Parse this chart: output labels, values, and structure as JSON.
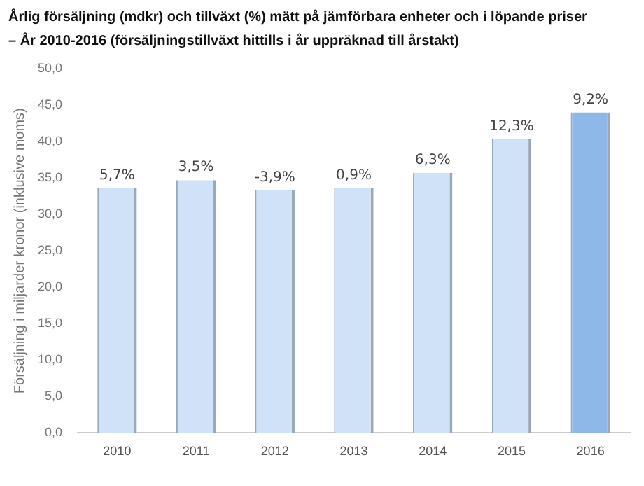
{
  "chart_data": {
    "type": "bar",
    "title": "Årlig försäljning (mdkr) och tillväxt (%) mätt på jämförbara enheter och i löpande priser",
    "subtitle": "– År 2010-2016 (försäljningstillväxt hittills i år uppräknad till årstakt)",
    "ylabel": "Försäljning i miljarder kronor (inklusive moms)",
    "categories": [
      "2010",
      "2011",
      "2012",
      "2013",
      "2014",
      "2015",
      "2016"
    ],
    "values": [
      33.6,
      34.7,
      33.3,
      33.6,
      35.7,
      40.3,
      44.0
    ],
    "colors": [
      "#cfe2f8",
      "#cfe2f8",
      "#cfe2f8",
      "#cfe2f8",
      "#cfe2f8",
      "#cfe2f8",
      "#8db8e8"
    ],
    "annotations": [
      {
        "text": "5,7%",
        "x": "2010",
        "y": 33.6
      },
      {
        "text": "3,5%",
        "x": "2011",
        "y": 34.7
      },
      {
        "text": "-3,9%",
        "x": "2012",
        "y": 33.3
      },
      {
        "text": "0,9%",
        "x": "2013",
        "y": 33.6
      },
      {
        "text": "6,3%",
        "x": "2014",
        "y": 35.7
      },
      {
        "text": "12,3%",
        "x": "2015",
        "y": 40.3
      },
      {
        "text": "9,2%",
        "x": "2016",
        "y": 44.0
      }
    ],
    "ylim": [
      0,
      50
    ],
    "yticks": [
      {
        "value": 0,
        "label": "0,0"
      },
      {
        "value": 5,
        "label": "5,0"
      },
      {
        "value": 10,
        "label": "10,0"
      },
      {
        "value": 15,
        "label": "15,0"
      },
      {
        "value": 20,
        "label": "20,0"
      },
      {
        "value": 25,
        "label": "25,0"
      },
      {
        "value": 30,
        "label": "30,0"
      },
      {
        "value": 35,
        "label": "35,0"
      },
      {
        "value": 40,
        "label": "40,0"
      },
      {
        "value": 45,
        "label": "45,0"
      },
      {
        "value": 50,
        "label": "50,0"
      }
    ],
    "grid": false,
    "legend": false
  }
}
